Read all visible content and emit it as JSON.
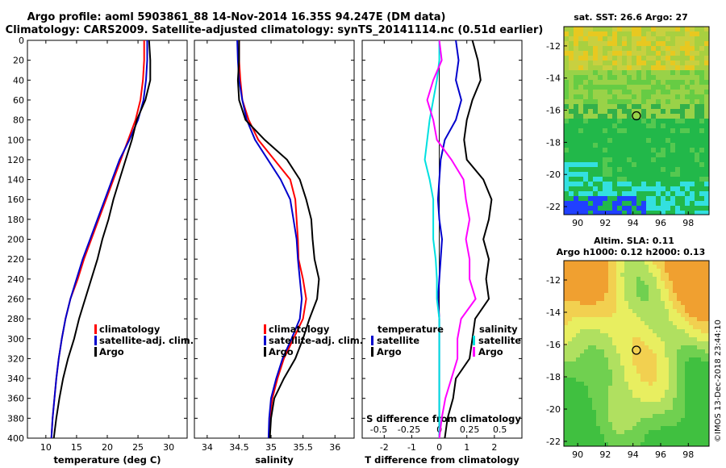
{
  "title": {
    "line1": "Argo profile: aoml 5903861_88 14-Nov-2014 16.35S 94.247E (DM data)",
    "line2": "Climatology: CARS2009. Satellite-adjusted climatology: synTS_20141114.nc (0.51d earlier)"
  },
  "colors": {
    "climatology": "#ff0000",
    "satellite_adj": "#0000cc",
    "argo": "#000000",
    "salinity_argo_diff": "#ff00ff",
    "salinity_sat_diff": "#00e0e0"
  },
  "stamp": "©IMOS 13-Dec-2018 23:44:10",
  "chart_data": [
    {
      "id": "temperature",
      "type": "line",
      "xlabel": "temperature (deg C)",
      "ylabel": "",
      "xlim": [
        7,
        33
      ],
      "ylim": [
        400,
        0
      ],
      "xticks": [
        10,
        15,
        20,
        25,
        30
      ],
      "yticks": [
        0,
        20,
        40,
        60,
        80,
        100,
        120,
        140,
        160,
        180,
        200,
        220,
        240,
        260,
        280,
        300,
        320,
        340,
        360,
        380,
        400
      ],
      "legend": [
        "climatology",
        "satellite-adj. clim.",
        "Argo"
      ],
      "series": [
        {
          "name": "climatology",
          "color": "#ff0000",
          "x": [
            26.0,
            26.0,
            25.8,
            25.4,
            24.6,
            23.4,
            22.2,
            21.0,
            19.8,
            18.6,
            17.4,
            16.2,
            15.2,
            14.0,
            13.2,
            12.6,
            12.1,
            11.7,
            11.4,
            11.1,
            10.9
          ],
          "y": [
            0,
            20,
            40,
            60,
            80,
            100,
            120,
            140,
            160,
            180,
            200,
            220,
            240,
            260,
            280,
            300,
            320,
            340,
            360,
            380,
            400
          ]
        },
        {
          "name": "satellite-adj. clim.",
          "color": "#0000cc",
          "x": [
            26.5,
            26.5,
            26.3,
            25.9,
            25.0,
            23.6,
            22.0,
            20.8,
            19.6,
            18.4,
            17.2,
            16.0,
            15.0,
            14.0,
            13.2,
            12.6,
            12.1,
            11.7,
            11.4,
            11.1,
            10.9
          ],
          "y": [
            0,
            20,
            40,
            60,
            80,
            100,
            120,
            140,
            160,
            180,
            200,
            220,
            240,
            260,
            280,
            300,
            320,
            340,
            360,
            380,
            400
          ]
        },
        {
          "name": "Argo",
          "color": "#000000",
          "x": [
            26.8,
            27.0,
            27.0,
            26.2,
            24.8,
            24.0,
            23.0,
            22.0,
            21.0,
            20.2,
            19.2,
            18.4,
            17.4,
            16.4,
            15.4,
            14.6,
            13.6,
            12.8,
            12.2,
            11.7,
            11.3
          ],
          "y": [
            0,
            20,
            40,
            60,
            80,
            100,
            120,
            140,
            160,
            180,
            200,
            220,
            240,
            260,
            280,
            300,
            320,
            340,
            360,
            380,
            400
          ]
        }
      ]
    },
    {
      "id": "salinity",
      "type": "line",
      "xlabel": "salinity",
      "ylabel": "",
      "xlim": [
        33.8,
        36.3
      ],
      "ylim": [
        400,
        0
      ],
      "xticks": [
        34,
        34.5,
        35,
        35.5,
        36
      ],
      "legend": [
        "climatology",
        "satellite-adj. clim.",
        "Argo"
      ],
      "series": [
        {
          "name": "climatology",
          "color": "#ff0000",
          "x": [
            34.5,
            34.5,
            34.52,
            34.55,
            34.65,
            34.8,
            35.05,
            35.3,
            35.38,
            35.4,
            35.42,
            35.43,
            35.5,
            35.55,
            35.5,
            35.35,
            35.2,
            35.1,
            35.02,
            34.98,
            34.97
          ],
          "y": [
            0,
            20,
            40,
            60,
            80,
            100,
            120,
            140,
            160,
            180,
            200,
            220,
            240,
            260,
            280,
            300,
            320,
            340,
            360,
            380,
            400
          ]
        },
        {
          "name": "satellite-adj. clim.",
          "color": "#0000cc",
          "x": [
            34.47,
            34.48,
            34.5,
            34.55,
            34.62,
            34.75,
            34.95,
            35.15,
            35.3,
            35.35,
            35.4,
            35.42,
            35.45,
            35.48,
            35.45,
            35.32,
            35.18,
            35.08,
            35.0,
            34.97,
            34.96
          ],
          "y": [
            0,
            20,
            40,
            60,
            80,
            100,
            120,
            140,
            160,
            180,
            200,
            220,
            240,
            260,
            280,
            300,
            320,
            340,
            360,
            380,
            400
          ]
        },
        {
          "name": "Argo",
          "color": "#000000",
          "x": [
            34.5,
            34.5,
            34.48,
            34.5,
            34.6,
            34.9,
            35.25,
            35.45,
            35.55,
            35.63,
            35.65,
            35.68,
            35.75,
            35.72,
            35.6,
            35.5,
            35.38,
            35.2,
            35.05,
            35.0,
            34.98
          ],
          "y": [
            0,
            20,
            40,
            60,
            80,
            100,
            120,
            140,
            160,
            180,
            200,
            220,
            240,
            260,
            280,
            300,
            320,
            340,
            360,
            380,
            400
          ]
        }
      ]
    },
    {
      "id": "difference",
      "type": "line",
      "xlabel": "T difference from climatology",
      "x2label": "S difference from climatology",
      "xlim": [
        -2.8,
        3.0
      ],
      "ylim": [
        400,
        0
      ],
      "xticks": [
        -2,
        -1,
        0,
        1,
        2
      ],
      "x2ticks": [
        -0.5,
        -0.25,
        0,
        0.25,
        0.5
      ],
      "x2ticks_labels": [
        "-0.5",
        "-0.25",
        "0",
        "0.25",
        "0.5"
      ],
      "legend_temperature_title": "temperature",
      "legend_salinity_title": "salinity",
      "legend": [
        "satellite",
        "Argo",
        "satellite",
        "Argo"
      ],
      "series": [
        {
          "name": "T satellite",
          "color": "#0000cc",
          "x": [
            0.6,
            0.7,
            0.6,
            0.8,
            0.6,
            0.2,
            0.05,
            0.0,
            -0.05,
            0.0,
            0.1,
            0.05,
            0.0,
            -0.05,
            0.0,
            0.0,
            0.0,
            0.0,
            0.0,
            0.0,
            0.0
          ],
          "y": [
            0,
            20,
            40,
            60,
            80,
            100,
            120,
            140,
            160,
            180,
            200,
            220,
            240,
            260,
            280,
            300,
            320,
            340,
            360,
            380,
            400
          ]
        },
        {
          "name": "T Argo",
          "color": "#000000",
          "x": [
            1.2,
            1.4,
            1.5,
            1.2,
            1.0,
            0.9,
            1.0,
            1.6,
            1.9,
            1.8,
            1.6,
            1.8,
            1.7,
            1.8,
            1.3,
            1.2,
            1.1,
            0.6,
            0.5,
            0.3,
            0.2
          ],
          "y": [
            0,
            20,
            40,
            60,
            80,
            100,
            120,
            140,
            160,
            180,
            200,
            220,
            240,
            260,
            280,
            300,
            320,
            340,
            360,
            380,
            400
          ]
        },
        {
          "name": "S satellite",
          "color": "#00e0e0",
          "x": [
            0.0,
            0.0,
            -0.02,
            -0.05,
            -0.08,
            -0.1,
            -0.12,
            -0.08,
            -0.05,
            -0.05,
            -0.05,
            -0.03,
            -0.02,
            -0.02,
            0.0,
            0.0,
            0.0,
            0.0,
            0.0,
            0.0,
            0.0
          ],
          "y": [
            0,
            20,
            40,
            60,
            80,
            100,
            120,
            140,
            160,
            180,
            200,
            220,
            240,
            260,
            280,
            300,
            320,
            340,
            360,
            380,
            400
          ]
        },
        {
          "name": "S Argo",
          "color": "#ff00ff",
          "x": [
            0.0,
            0.02,
            -0.05,
            -0.1,
            -0.05,
            -0.02,
            0.1,
            0.2,
            0.22,
            0.25,
            0.22,
            0.25,
            0.25,
            0.3,
            0.18,
            0.15,
            0.15,
            0.1,
            0.05,
            0.02,
            0.0
          ],
          "y": [
            0,
            20,
            40,
            60,
            80,
            100,
            120,
            140,
            160,
            180,
            200,
            220,
            240,
            260,
            280,
            300,
            320,
            340,
            360,
            380,
            400
          ]
        }
      ]
    },
    {
      "id": "sst_map",
      "type": "heatmap",
      "title": "sat. SST: 26.6 Argo: 27",
      "xlim": [
        89,
        99.5
      ],
      "ylim": [
        -22.5,
        -10.8
      ],
      "xticks": [
        90,
        92,
        94,
        96,
        98
      ],
      "yticks": [
        -12,
        -14,
        -16,
        -18,
        -20,
        -22
      ],
      "profile_lon": 94.247,
      "profile_lat": -16.35
    },
    {
      "id": "sla_map",
      "type": "heatmap",
      "title_line1": "Altim. SLA: 0.11",
      "title_line2": "Argo h1000: 0.12 h2000: 0.13",
      "xlim": [
        89,
        99.5
      ],
      "ylim": [
        -22.3,
        -10.8
      ],
      "xticks": [
        90,
        92,
        94,
        96,
        98
      ],
      "yticks": [
        -12,
        -14,
        -16,
        -18,
        -20,
        -22
      ],
      "profile_lon": 94.247,
      "profile_lat": -16.35
    }
  ]
}
